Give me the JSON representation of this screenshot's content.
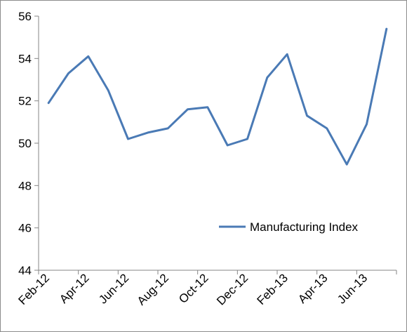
{
  "chart_data": {
    "type": "line",
    "title": "",
    "xlabel": "",
    "ylabel": "",
    "ylim": [
      44,
      56
    ],
    "yticks": [
      44,
      46,
      48,
      50,
      52,
      54,
      56
    ],
    "grid": false,
    "legend_position": "bottom-right",
    "color": "#4a7ab5",
    "x": [
      "Feb-12",
      "Mar-12",
      "Apr-12",
      "May-12",
      "Jun-12",
      "Jul-12",
      "Aug-12",
      "Sep-12",
      "Oct-12",
      "Nov-12",
      "Dec-12",
      "Jan-13",
      "Feb-13",
      "Mar-13",
      "Apr-13",
      "May-13",
      "Jun-13",
      "Jul-13"
    ],
    "x_tick_labels": [
      "Feb-12",
      "Apr-12",
      "Jun-12",
      "Aug-12",
      "Oct-12",
      "Dec-12",
      "Feb-13",
      "Apr-13",
      "Jun-13"
    ],
    "series": [
      {
        "name": "Manufacturing Index",
        "values": [
          51.9,
          53.3,
          54.1,
          52.5,
          50.2,
          50.5,
          50.7,
          51.6,
          51.7,
          49.9,
          50.2,
          53.1,
          54.2,
          51.3,
          50.7,
          49.0,
          50.9,
          55.4
        ]
      }
    ]
  }
}
